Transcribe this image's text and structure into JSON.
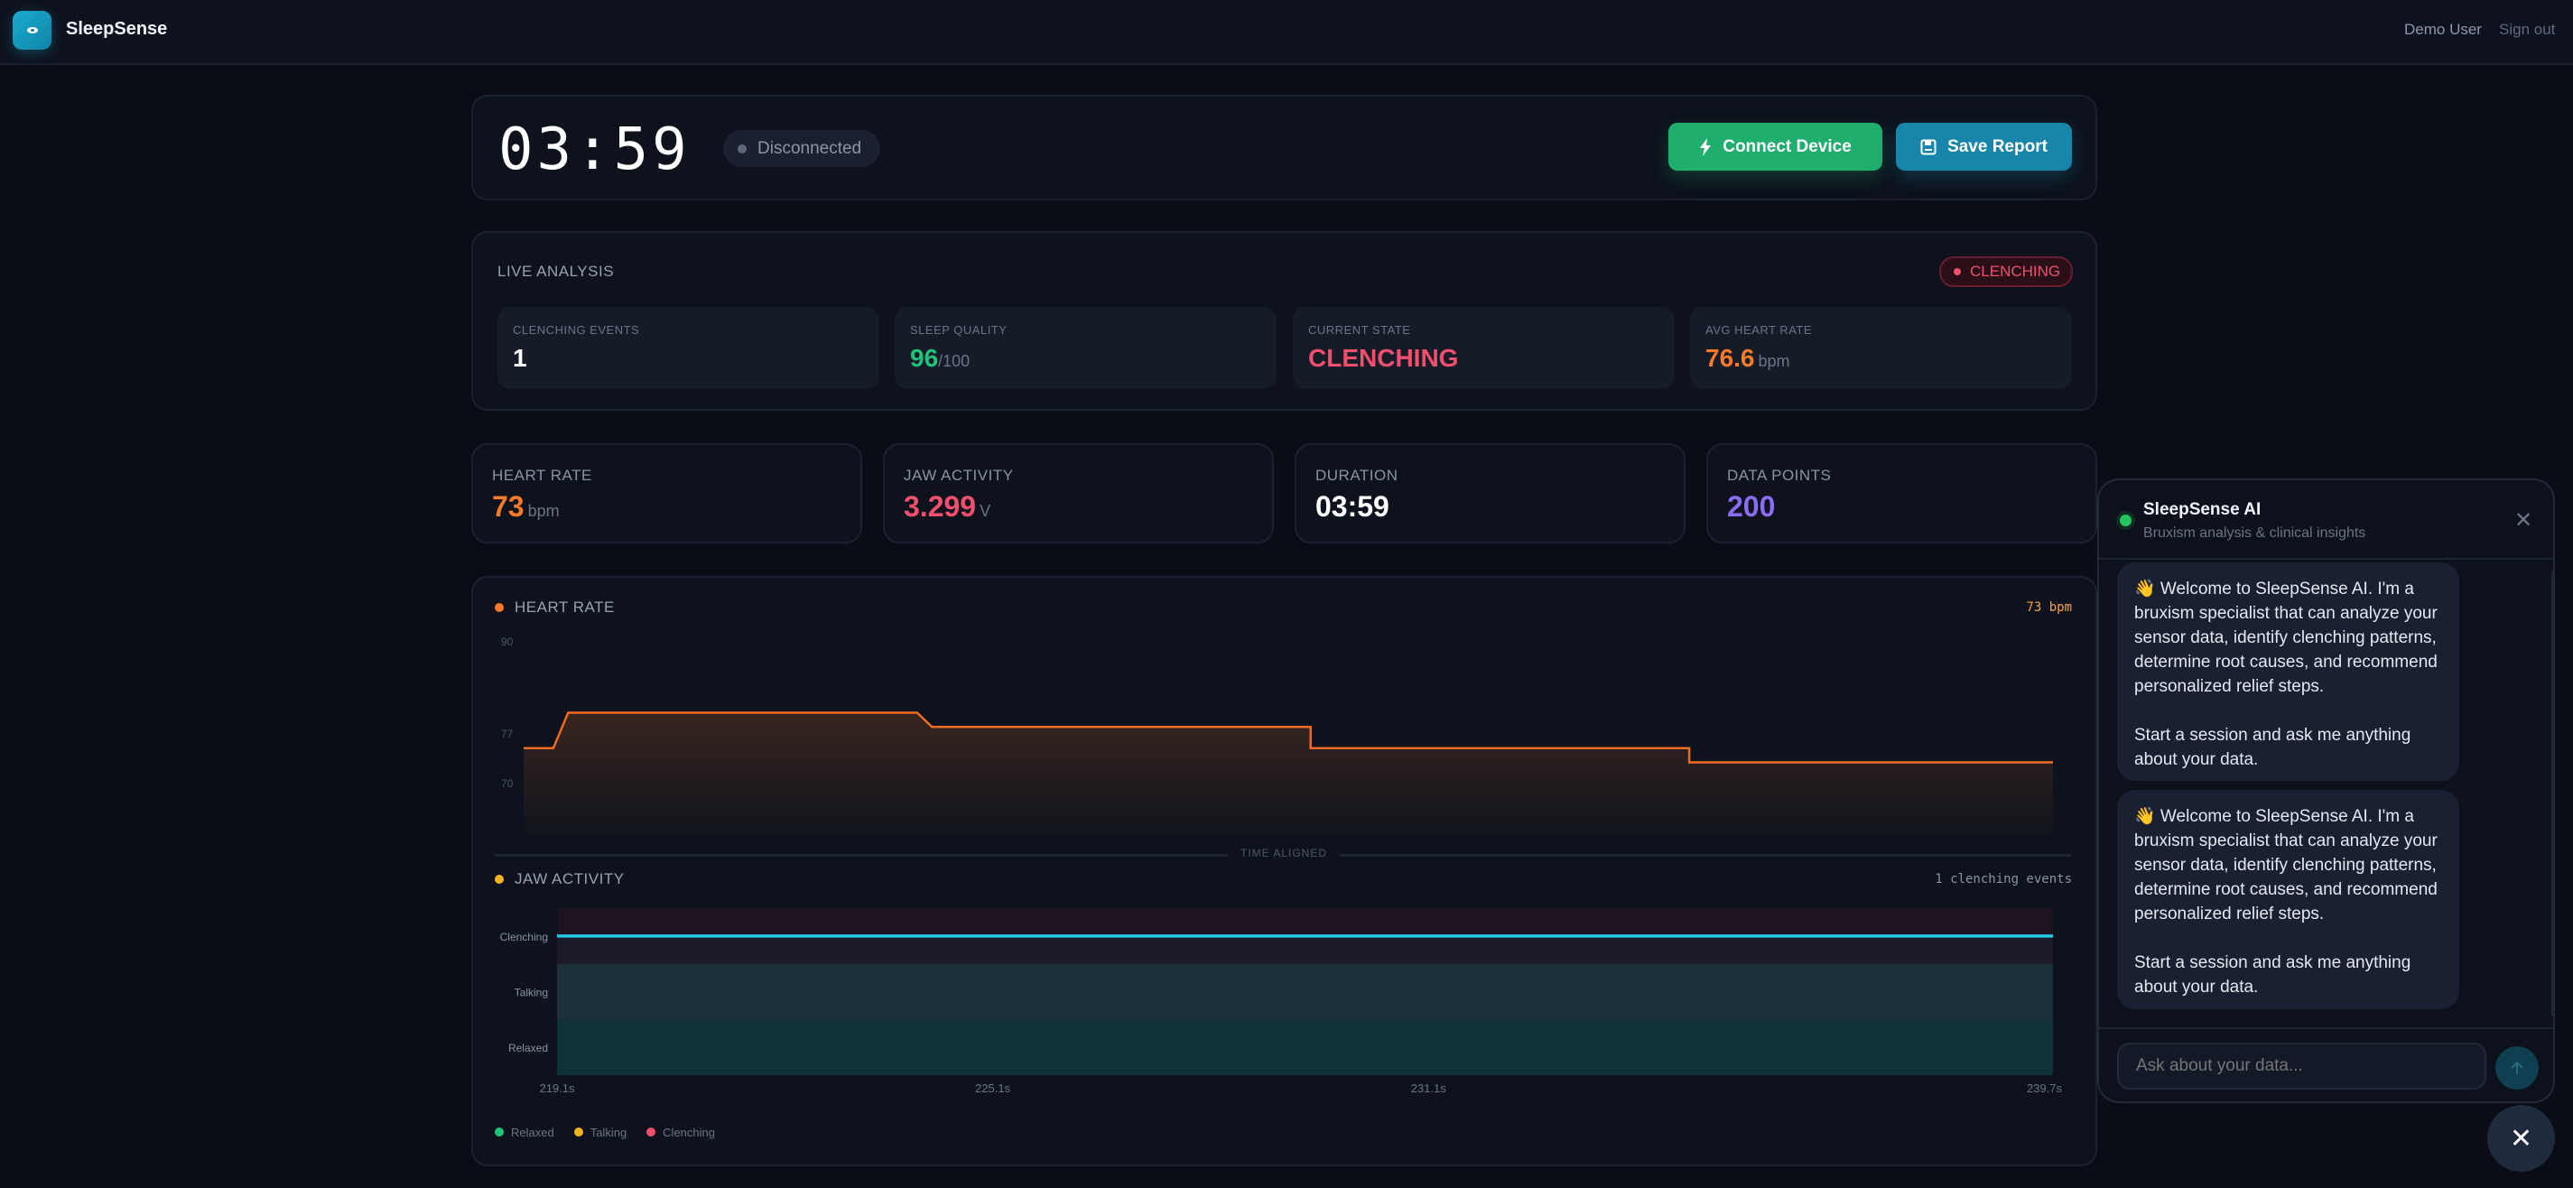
{
  "header": {
    "brand": "SleepSense",
    "user": "Demo User",
    "sign_out": "Sign out"
  },
  "session": {
    "timer": "03:59",
    "connection_status": "Disconnected",
    "connect_label": "Connect Device",
    "save_label": "Save Report"
  },
  "live": {
    "title": "LIVE ANALYSIS",
    "badge": "CLENCHING",
    "cards": [
      {
        "label": "CLENCHING EVENTS",
        "value": "1",
        "unit": ""
      },
      {
        "label": "SLEEP QUALITY",
        "value": "96",
        "unit": "/100"
      },
      {
        "label": "CURRENT STATE",
        "value": "CLENCHING",
        "unit": ""
      },
      {
        "label": "AVG HEART RATE",
        "value": "76.6",
        "unit": "bpm"
      }
    ]
  },
  "stats": [
    {
      "label": "HEART RATE",
      "value": "73",
      "unit": "bpm"
    },
    {
      "label": "JAW ACTIVITY",
      "value": "3.299",
      "unit": "V"
    },
    {
      "label": "DURATION",
      "value": "03:59",
      "unit": ""
    },
    {
      "label": "DATA POINTS",
      "value": "200",
      "unit": ""
    }
  ],
  "colors": {
    "green": "#1fae6e",
    "blue": "#1786aa",
    "orange": "#f97a2b",
    "red": "#f0506e",
    "purple": "#8b6cf2",
    "cyan": "#22c8e8",
    "yellow": "#f5b41c"
  },
  "chart_data": [
    {
      "type": "line",
      "title": "HEART RATE",
      "readout": "73 bpm",
      "ylim": [
        63,
        90
      ],
      "yticks": [
        "90",
        "77",
        "70"
      ],
      "xlim": [
        219.1,
        239.7
      ],
      "x": [
        219.1,
        219.5,
        219.7,
        224.4,
        224.6,
        229.7,
        229.7,
        234.8,
        234.8,
        239.7
      ],
      "values": [
        75,
        75,
        80,
        80,
        78,
        78,
        75,
        75,
        73,
        73
      ]
    },
    {
      "type": "line",
      "title": "JAW ACTIVITY",
      "readout": "1 clenching events",
      "divider": "TIME ALIGNED",
      "categories": [
        "Relaxed",
        "Talking",
        "Clenching"
      ],
      "x": [
        219.1,
        239.7
      ],
      "values": [
        2,
        2
      ],
      "xticks": [
        "219.1s",
        "225.1s",
        "231.1s",
        "239.7s"
      ],
      "legend": [
        "Relaxed",
        "Talking",
        "Clenching"
      ]
    }
  ],
  "chat": {
    "title": "SleepSense AI",
    "subtitle": "Bruxism analysis & clinical insights",
    "messages": [
      "👋 Welcome to SleepSense AI. I'm a bruxism specialist that can analyze your sensor data, identify clenching patterns, determine root causes, and recommend personalized relief steps.\n\nStart a session and ask me anything about your data.",
      "👋 Welcome to SleepSense AI. I'm a bruxism specialist that can analyze your sensor data, identify clenching patterns, determine root causes, and recommend personalized relief steps.\n\nStart a session and ask me anything about your data."
    ],
    "placeholder": "Ask about your data..."
  }
}
